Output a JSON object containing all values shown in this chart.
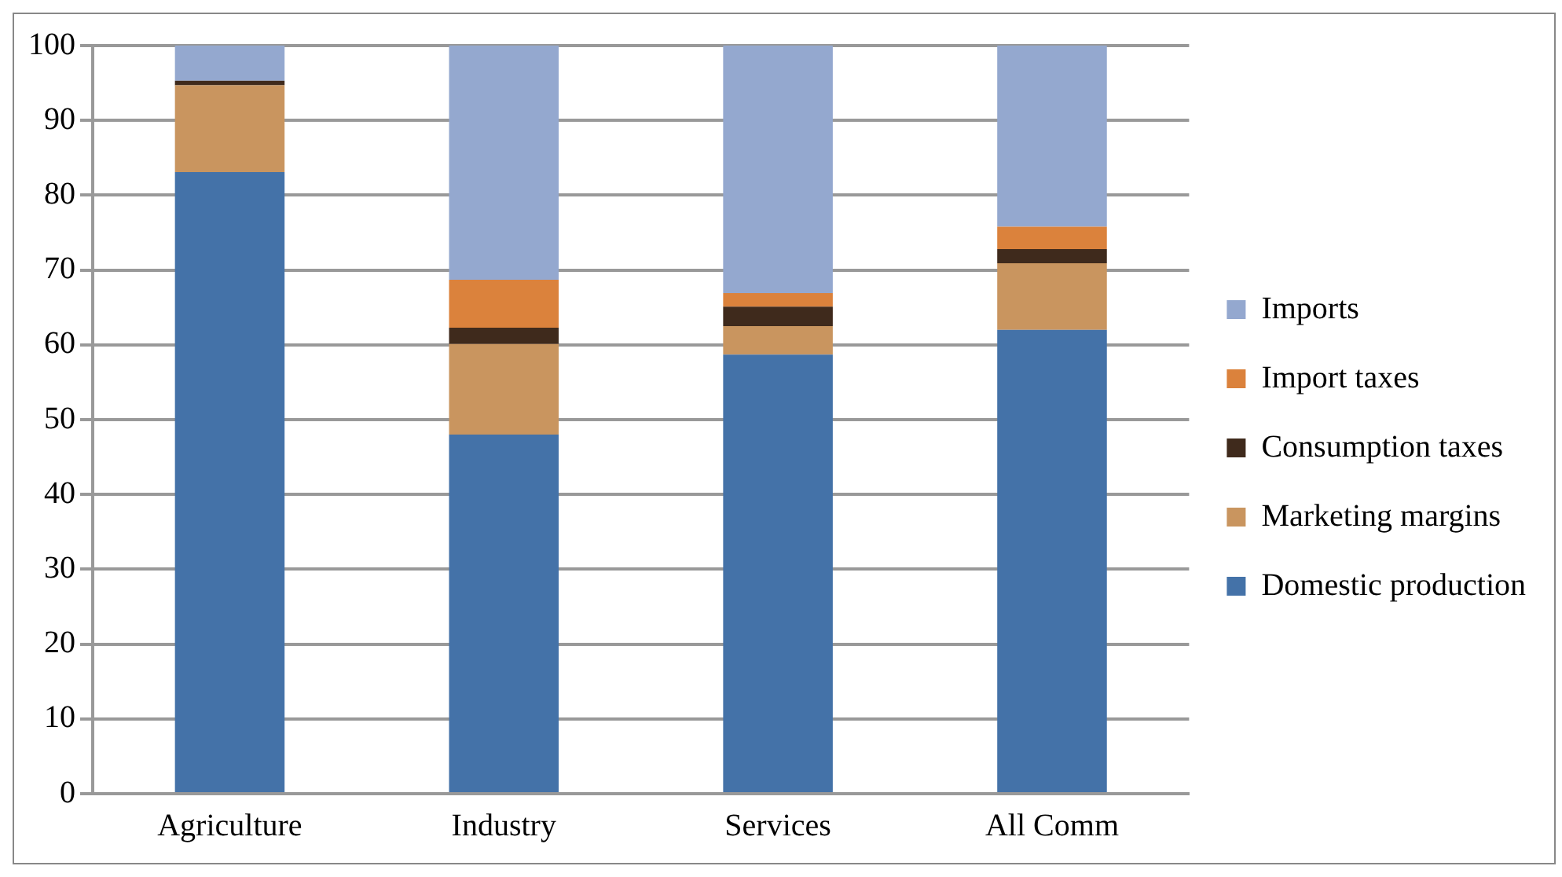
{
  "chart_data": {
    "type": "bar",
    "stacked": true,
    "categories": [
      "Agriculture",
      "Industry",
      "Services",
      "All Comm"
    ],
    "series": [
      {
        "name": "Domestic production",
        "color": "#4472a8",
        "values": [
          83.1,
          48.0,
          58.7,
          62.0
        ]
      },
      {
        "name": "Marketing margins",
        "color": "#c9955f",
        "values": [
          11.6,
          12.1,
          3.8,
          8.9
        ]
      },
      {
        "name": "Consumption taxes",
        "color": "#3f2a1c",
        "values": [
          0.6,
          2.2,
          2.6,
          1.9
        ]
      },
      {
        "name": "Import taxes",
        "color": "#db823c",
        "values": [
          0,
          6.4,
          1.8,
          3.0
        ]
      },
      {
        "name": "Imports",
        "color": "#94a8cf",
        "values": [
          4.7,
          31.3,
          33.1,
          24.2
        ]
      }
    ],
    "ylim": [
      0,
      100
    ],
    "yticks": [
      0,
      10,
      20,
      30,
      40,
      50,
      60,
      70,
      80,
      90,
      100
    ],
    "grid": "y",
    "legend": "right"
  }
}
